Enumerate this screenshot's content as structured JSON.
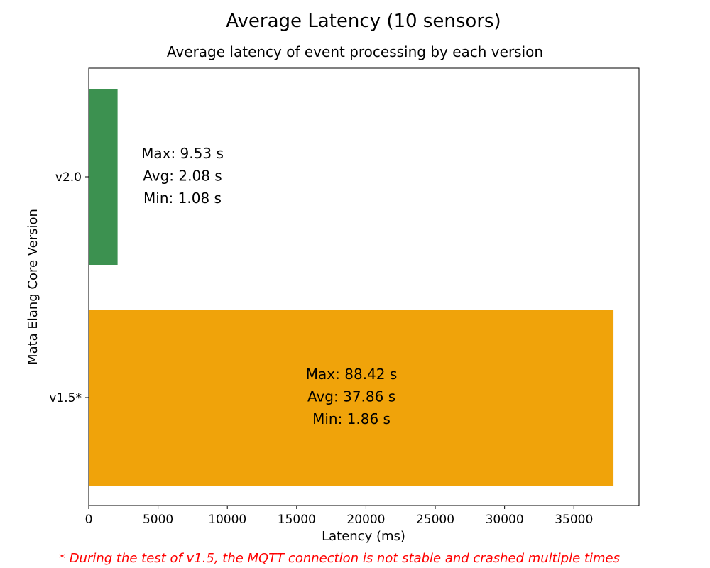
{
  "chart_data": {
    "type": "bar",
    "orientation": "horizontal",
    "title": "Average Latency (10 sensors)",
    "subtitle": "Average latency of event processing by each version",
    "xlabel": "Latency (ms)",
    "ylabel": "Mata Elang Core Version",
    "xlim": [
      0,
      39700
    ],
    "xticks": [
      0,
      5000,
      10000,
      15000,
      20000,
      25000,
      30000,
      35000
    ],
    "categories": [
      "v2.0",
      "v1.5*"
    ],
    "values": [
      2080,
      37860
    ],
    "colors": [
      "#3c9150",
      "#f0a30a"
    ],
    "annotations": [
      [
        "Max: 9.53 s",
        "Avg: 2.08 s",
        "Min: 1.08 s"
      ],
      [
        "Max: 88.42 s",
        "Avg: 37.86 s",
        "Min: 1.86 s"
      ]
    ],
    "grid": false,
    "footnote": "* During the test of v1.5, the MQTT connection is not stable and crashed multiple times"
  }
}
